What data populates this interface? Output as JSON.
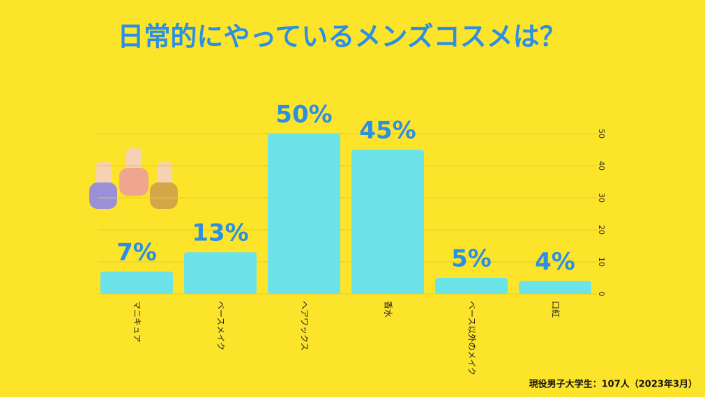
{
  "chart_data": {
    "type": "bar",
    "title": "日常的にやっているメンズコスメは？",
    "categories": [
      "マニキュア",
      "ベースメイク",
      "ヘアワックス",
      "香水",
      "ベース以外のメイク",
      "口紅"
    ],
    "values": [
      7,
      13,
      50,
      45,
      5,
      4
    ],
    "value_labels": [
      "7%",
      "13%",
      "50%",
      "45%",
      "5%",
      "4%"
    ],
    "color": "#6be3e8",
    "ylim": [
      0,
      50
    ],
    "yticks": [
      0,
      10,
      20,
      30,
      40,
      50
    ],
    "grid": true,
    "note": "現役男子大学生：107人（2023年3月）"
  }
}
